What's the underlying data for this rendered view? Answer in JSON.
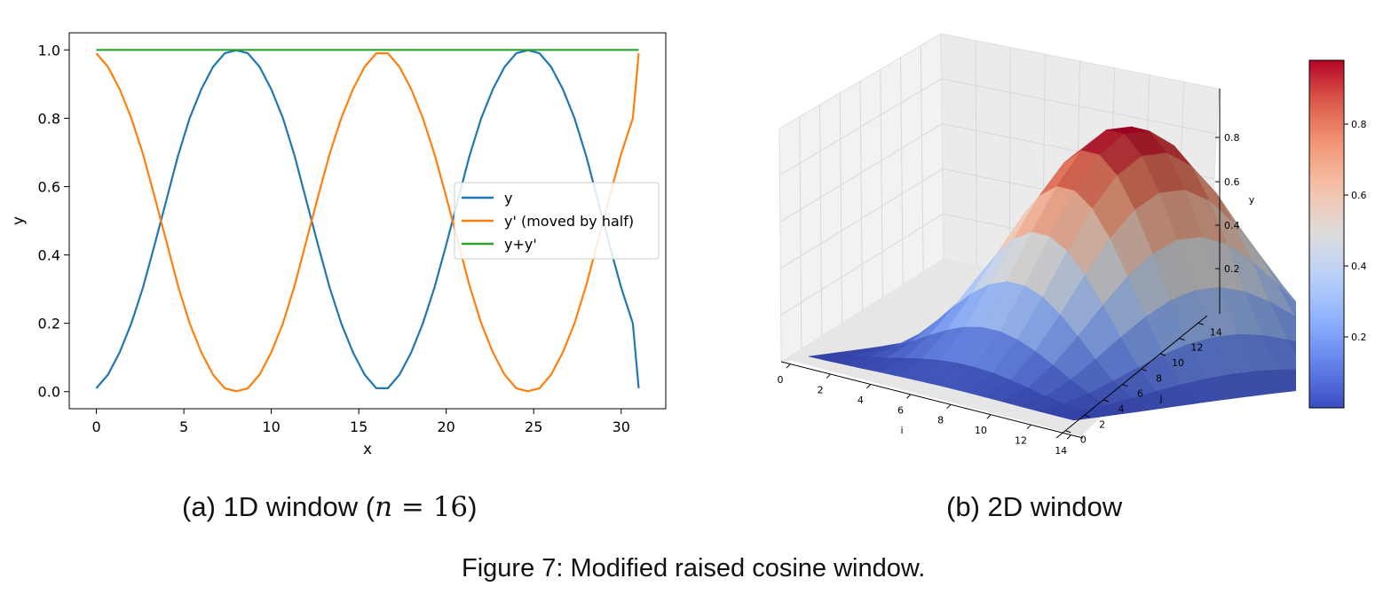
{
  "chart_data": [
    {
      "type": "line",
      "title": "",
      "xlabel": "x",
      "ylabel": "y",
      "xlim": [
        -1.55,
        32.55
      ],
      "ylim": [
        -0.05,
        1.05
      ],
      "xticks": [
        "0",
        "5",
        "10",
        "15",
        "20",
        "25",
        "30"
      ],
      "yticks": [
        "0.0",
        "0.2",
        "0.4",
        "0.6",
        "0.8",
        "1.0"
      ],
      "grid": false,
      "legend_position": "center-right",
      "series": [
        {
          "name": "y",
          "color": "#1f77b4",
          "x": [
            0,
            0.667,
            1.333,
            2,
            2.667,
            3.333,
            4,
            4.667,
            5.333,
            6,
            6.667,
            7.333,
            8,
            8.667,
            9.333,
            10,
            10.667,
            11.333,
            12,
            12.667,
            13.333,
            14,
            14.667,
            15.333,
            16,
            16.667,
            17.333,
            18,
            18.667,
            19.333,
            20,
            20.667,
            21.333,
            22,
            22.667,
            23.333,
            24,
            24.667,
            25.333,
            26,
            26.667,
            27.333,
            28,
            28.667,
            29.333,
            30,
            30.667,
            31
          ],
          "y": [
            0.01,
            0.05,
            0.115,
            0.2,
            0.305,
            0.43,
            0.56,
            0.69,
            0.8,
            0.885,
            0.95,
            0.99,
            0.999,
            0.99,
            0.95,
            0.885,
            0.8,
            0.69,
            0.56,
            0.43,
            0.305,
            0.2,
            0.115,
            0.05,
            0.01,
            0.01,
            0.05,
            0.115,
            0.2,
            0.305,
            0.43,
            0.56,
            0.69,
            0.8,
            0.885,
            0.95,
            0.99,
            0.999,
            0.99,
            0.95,
            0.885,
            0.8,
            0.69,
            0.56,
            0.43,
            0.305,
            0.2,
            0.01
          ]
        },
        {
          "name": "y' (moved by half)",
          "color": "#ff7f0e",
          "x": [
            0,
            0.667,
            1.333,
            2,
            2.667,
            3.333,
            4,
            4.667,
            5.333,
            6,
            6.667,
            7.333,
            8,
            8.667,
            9.333,
            10,
            10.667,
            11.333,
            12,
            12.667,
            13.333,
            14,
            14.667,
            15.333,
            16,
            16.667,
            17.333,
            18,
            18.667,
            19.333,
            20,
            20.667,
            21.333,
            22,
            22.667,
            23.333,
            24,
            24.667,
            25.333,
            26,
            26.667,
            27.333,
            28,
            28.667,
            29.333,
            30,
            30.667,
            31
          ],
          "y": [
            0.99,
            0.95,
            0.885,
            0.8,
            0.695,
            0.57,
            0.44,
            0.31,
            0.2,
            0.115,
            0.05,
            0.01,
            0.001,
            0.01,
            0.05,
            0.115,
            0.2,
            0.31,
            0.44,
            0.57,
            0.695,
            0.8,
            0.885,
            0.95,
            0.99,
            0.99,
            0.95,
            0.885,
            0.8,
            0.695,
            0.57,
            0.44,
            0.31,
            0.2,
            0.115,
            0.05,
            0.01,
            0.001,
            0.01,
            0.05,
            0.115,
            0.2,
            0.31,
            0.44,
            0.57,
            0.695,
            0.8,
            0.99
          ]
        },
        {
          "name": "y+y'",
          "color": "#2ca02c",
          "x": [
            0,
            31
          ],
          "y": [
            1.0,
            1.0
          ]
        }
      ]
    },
    {
      "type": "surface",
      "title": "",
      "xlabel": "i",
      "ylabel": "j",
      "zlabel": "y",
      "xticks": [
        "0",
        "2",
        "4",
        "6",
        "8",
        "10",
        "12",
        "14"
      ],
      "yticks": [
        "0",
        "2",
        "4",
        "6",
        "8",
        "10",
        "12",
        "14"
      ],
      "zticks": [
        "0.2",
        "0.4",
        "0.6",
        "0.8"
      ],
      "grid_size": 16,
      "zlim": [
        0,
        1
      ],
      "colormap": "coolwarm",
      "colorbar_ticks": [
        "0.2",
        "0.4",
        "0.6",
        "0.8"
      ],
      "colorbar_range": [
        0,
        0.98
      ]
    }
  ],
  "captions": {
    "a_text": "(a) 1D window (",
    "a_var": "n",
    "a_eq": " = 16",
    "a_close": ")",
    "b": "(b) 2D window",
    "figure": "Figure 7: Modified raised cosine window."
  }
}
